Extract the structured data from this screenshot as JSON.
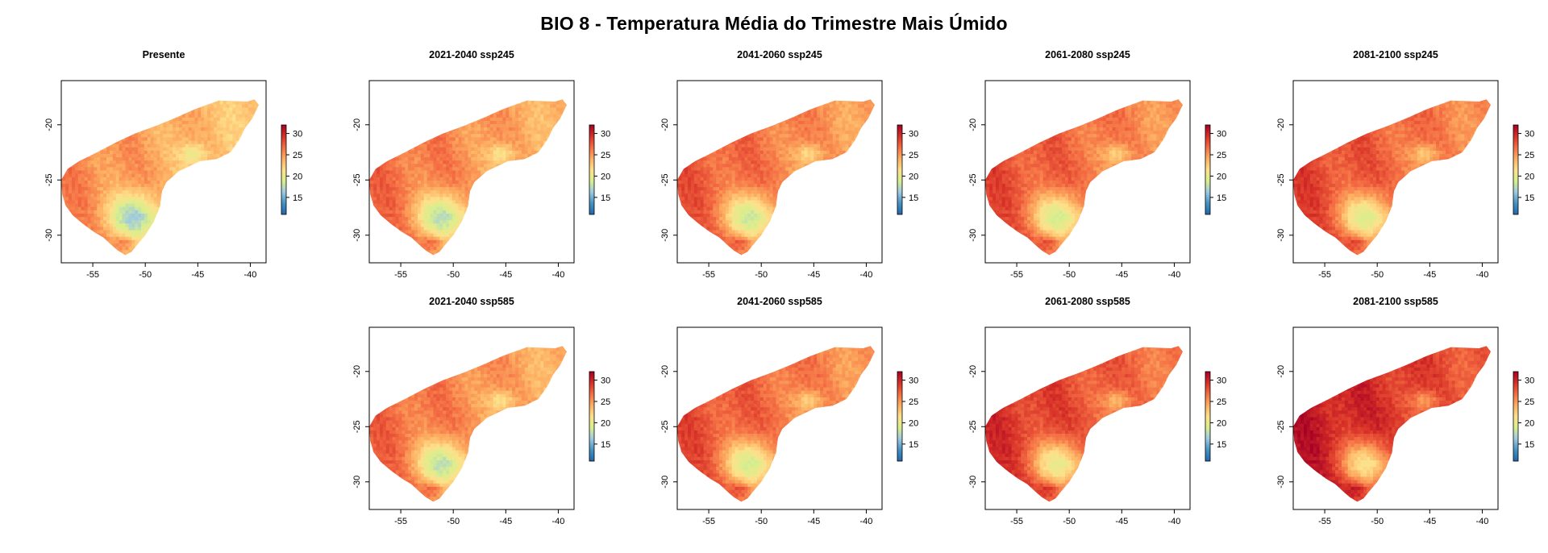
{
  "title": "BIO 8 - Temperatura Média do Trimestre Mais Úmido",
  "x_ticks": [
    "-55",
    "-50",
    "-45",
    "-40"
  ],
  "y_ticks": [
    "-20",
    "-25",
    "-30"
  ],
  "legend_ticks": [
    "30",
    "25",
    "20",
    "15"
  ],
  "chart_data": {
    "type": "map",
    "xlim": [
      -58,
      -38.5
    ],
    "ylim": [
      -32.5,
      -16
    ],
    "x_tick_values": [
      -55,
      -50,
      -45,
      -40
    ],
    "y_tick_values": [
      -20,
      -25,
      -30
    ],
    "legend_range": [
      11,
      32
    ],
    "legend_tick_values": [
      30,
      25,
      20,
      15
    ],
    "colormap": [
      "#2166ac",
      "#4393c3",
      "#9ecae1",
      "#d9ef8b",
      "#fee08b",
      "#fdae61",
      "#f46d43",
      "#d73027",
      "#a50026"
    ],
    "panels": [
      {
        "title": "Presente",
        "row": 0,
        "col": 0,
        "warming": 0
      },
      {
        "title": "2021-2040 ssp245",
        "row": 0,
        "col": 1,
        "warming": 1.0
      },
      {
        "title": "2041-2060 ssp245",
        "row": 0,
        "col": 2,
        "warming": 1.8
      },
      {
        "title": "2061-2080 ssp245",
        "row": 0,
        "col": 3,
        "warming": 2.3
      },
      {
        "title": "2081-2100 ssp245",
        "row": 0,
        "col": 4,
        "warming": 2.7
      },
      {
        "title": "2021-2040 ssp585",
        "row": 1,
        "col": 1,
        "warming": 1.2
      },
      {
        "title": "2041-2060 ssp585",
        "row": 1,
        "col": 2,
        "warming": 2.3
      },
      {
        "title": "2061-2080 ssp585",
        "row": 1,
        "col": 3,
        "warming": 3.5
      },
      {
        "title": "2081-2100 ssp585",
        "row": 1,
        "col": 4,
        "warming": 4.8
      }
    ]
  }
}
